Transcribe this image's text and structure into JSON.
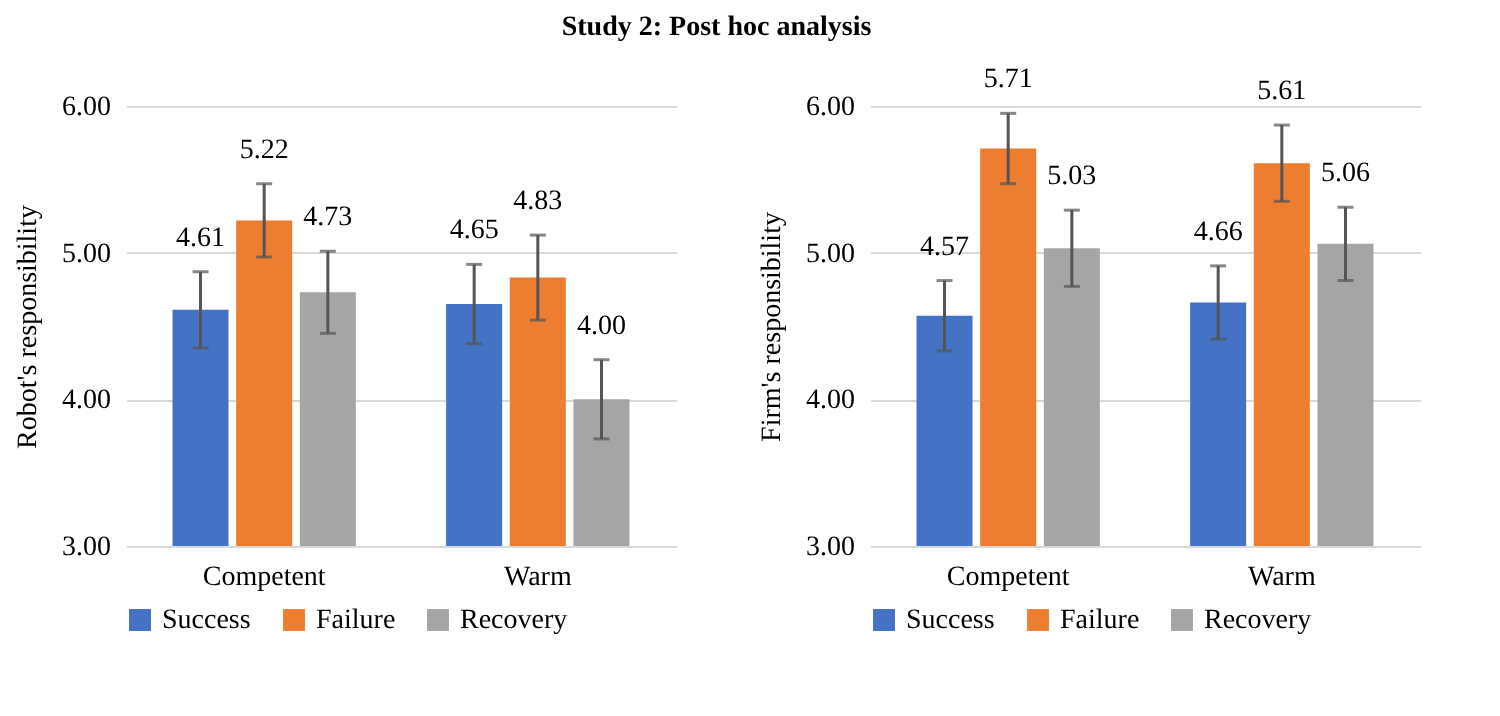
{
  "chart_data": [
    {
      "type": "bar",
      "title": "Study 2: Post hoc analysis",
      "ylabel": "Robot's responsibility",
      "categories": [
        "Competent",
        "Warm"
      ],
      "series": [
        {
          "name": "Success",
          "color": "#4472c4",
          "values": [
            4.61,
            4.65
          ],
          "errors": [
            0.26,
            0.27
          ],
          "value_labels": [
            "4.61",
            "4.65"
          ]
        },
        {
          "name": "Failure",
          "color": "#ed7d31",
          "values": [
            5.22,
            4.83
          ],
          "errors": [
            0.25,
            0.29
          ],
          "value_labels": [
            "5.22",
            "4.83"
          ]
        },
        {
          "name": "Recovery",
          "color": "#a5a5a5",
          "values": [
            4.73,
            4.0
          ],
          "errors": [
            0.28,
            0.27
          ],
          "value_labels": [
            "4.73",
            "4.00"
          ]
        }
      ],
      "ylim": [
        3,
        6
      ],
      "yticks": [
        {
          "value": 3,
          "label": "3.00"
        },
        {
          "value": 4,
          "label": "4.00"
        },
        {
          "value": 5,
          "label": "5.00"
        },
        {
          "value": 6,
          "label": "6.00"
        }
      ],
      "grid": "y",
      "legend": "bottom"
    },
    {
      "type": "bar",
      "ylabel": "Firm's responsibility",
      "categories": [
        "Competent",
        "Warm"
      ],
      "series": [
        {
          "name": "Success",
          "color": "#4472c4",
          "values": [
            4.57,
            4.66
          ],
          "errors": [
            0.24,
            0.25
          ],
          "value_labels": [
            "4.57",
            "4.66"
          ]
        },
        {
          "name": "Failure",
          "color": "#ed7d31",
          "values": [
            5.71,
            5.61
          ],
          "errors": [
            0.24,
            0.26
          ],
          "value_labels": [
            "5.71",
            "5.61"
          ]
        },
        {
          "name": "Recovery",
          "color": "#a5a5a5",
          "values": [
            5.03,
            5.06
          ],
          "errors": [
            0.26,
            0.25
          ],
          "value_labels": [
            "5.03",
            "5.06"
          ]
        }
      ],
      "ylim": [
        3,
        6
      ],
      "yticks": [
        {
          "value": 3,
          "label": "3.00"
        },
        {
          "value": 4,
          "label": "4.00"
        },
        {
          "value": 5,
          "label": "5.00"
        },
        {
          "value": 6,
          "label": "6.00"
        }
      ],
      "grid": "y",
      "legend": "bottom"
    }
  ]
}
